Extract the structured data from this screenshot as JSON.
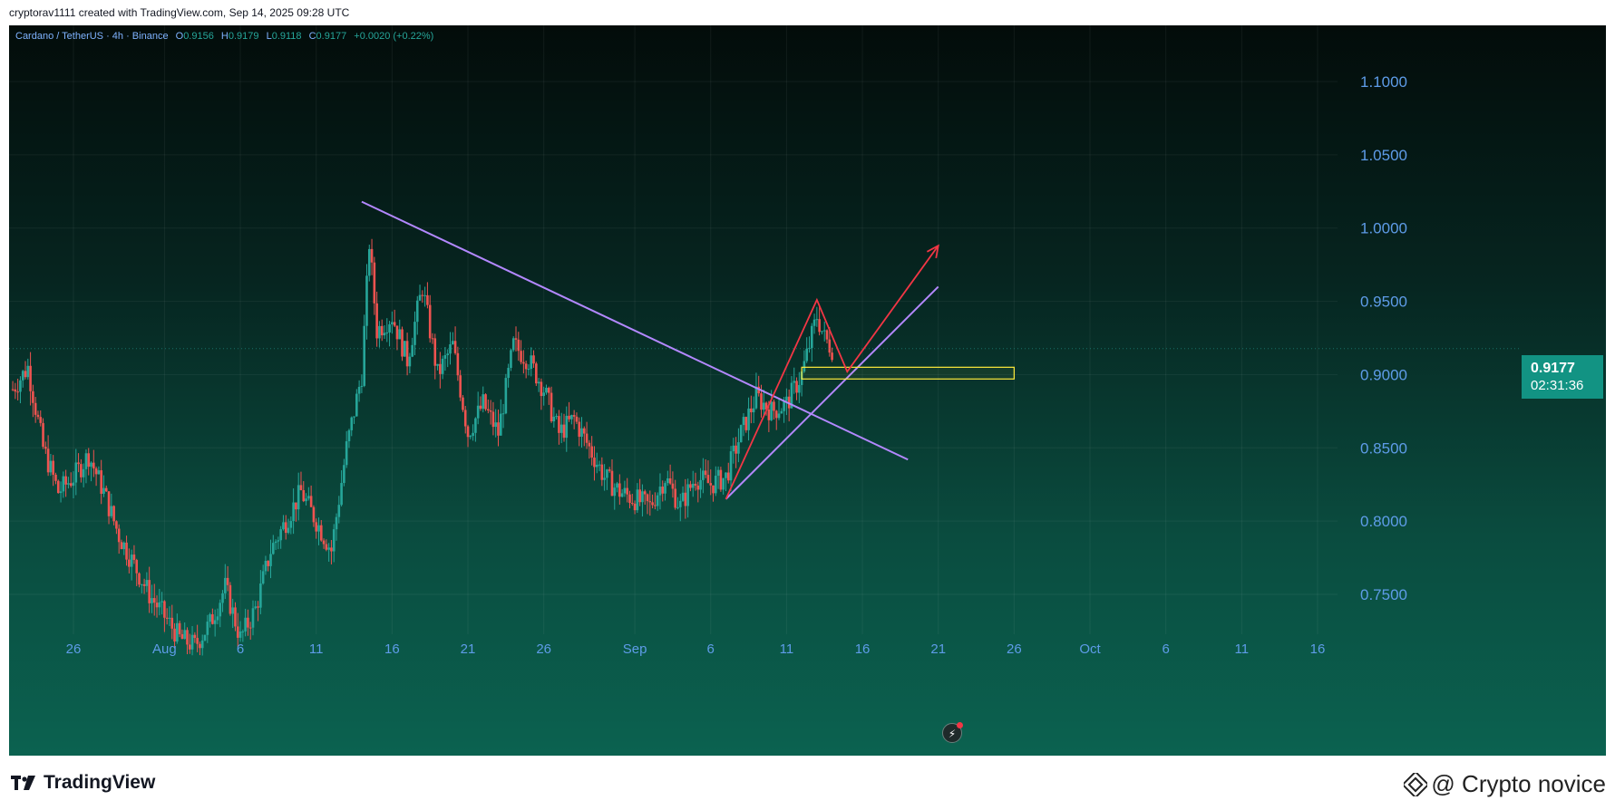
{
  "header": {
    "credit": "cryptorav1111 created with TradingView.com, Sep 14, 2025 09:28 UTC"
  },
  "legend": {
    "symbol": "Cardano / TetherUS · 4h · Binance",
    "o_label": "O",
    "o_value": "0.9156",
    "h_label": "H",
    "h_value": "0.9179",
    "l_label": "L",
    "l_value": "0.9118",
    "c_label": "C",
    "c_value": "0.9177",
    "change": "+0.0020 (+0.22%)"
  },
  "price_tag": {
    "price": "0.9177",
    "countdown": "02:31:36"
  },
  "footer": {
    "brand": "TradingView",
    "watermark": "@ Crypto novice"
  },
  "colors": {
    "up": "#26a69a",
    "down": "#ef5350",
    "axis_text": "#5e9ce8",
    "trendline": "#b388ff",
    "pattern": "#f23645",
    "zone": "#ffeb3b"
  },
  "chart_data": {
    "type": "candlestick",
    "symbol": "Cardano / TetherUS",
    "interval": "4h",
    "exchange": "Binance",
    "y_ticks": [
      1.1,
      1.05,
      1.0,
      0.95,
      0.9,
      0.85,
      0.8,
      0.75
    ],
    "y_tick_labels": [
      "1.1000",
      "1.0500",
      "1.0000",
      "0.9500",
      "0.9000",
      "0.8500",
      "0.8000",
      "0.7500"
    ],
    "ylim": [
      0.7,
      1.125
    ],
    "x_ticks": [
      "26",
      "Aug",
      "6",
      "11",
      "16",
      "21",
      "26",
      "Sep",
      "6",
      "11",
      "16",
      "21",
      "26",
      "Oct",
      "6",
      "11",
      "16"
    ],
    "x_tick_dates": [
      "2025-07-26",
      "2025-08-01",
      "2025-08-06",
      "2025-08-11",
      "2025-08-16",
      "2025-08-21",
      "2025-08-26",
      "2025-09-01",
      "2025-09-06",
      "2025-09-11",
      "2025-09-16",
      "2025-09-21",
      "2025-09-26",
      "2025-10-01",
      "2025-10-06",
      "2025-10-11",
      "2025-10-16"
    ],
    "grid": true,
    "last_price": 0.9177,
    "price_path": [
      [
        "2025-07-22",
        0.89
      ],
      [
        "2025-07-23",
        0.905
      ],
      [
        "2025-07-24",
        0.85
      ],
      [
        "2025-07-25",
        0.82
      ],
      [
        "2025-07-26",
        0.83
      ],
      [
        "2025-07-27",
        0.845
      ],
      [
        "2025-07-28",
        0.82
      ],
      [
        "2025-07-29",
        0.79
      ],
      [
        "2025-07-30",
        0.77
      ],
      [
        "2025-07-31",
        0.75
      ],
      [
        "2025-08-02",
        0.72
      ],
      [
        "2025-08-03",
        0.715
      ],
      [
        "2025-08-04",
        0.73
      ],
      [
        "2025-08-05",
        0.755
      ],
      [
        "2025-08-06",
        0.72
      ],
      [
        "2025-08-07",
        0.74
      ],
      [
        "2025-08-08",
        0.78
      ],
      [
        "2025-08-09",
        0.8
      ],
      [
        "2025-08-10",
        0.82
      ],
      [
        "2025-08-11",
        0.8
      ],
      [
        "2025-08-12",
        0.78
      ],
      [
        "2025-08-13",
        0.85
      ],
      [
        "2025-08-14",
        0.9
      ],
      [
        "2025-08-14T12:00",
        0.99
      ],
      [
        "2025-08-15",
        0.93
      ],
      [
        "2025-08-16",
        0.94
      ],
      [
        "2025-08-17",
        0.91
      ],
      [
        "2025-08-18",
        0.96
      ],
      [
        "2025-08-19",
        0.9
      ],
      [
        "2025-08-20",
        0.92
      ],
      [
        "2025-08-21",
        0.86
      ],
      [
        "2025-08-22",
        0.88
      ],
      [
        "2025-08-23",
        0.86
      ],
      [
        "2025-08-24",
        0.92
      ],
      [
        "2025-08-25",
        0.91
      ],
      [
        "2025-08-26",
        0.89
      ],
      [
        "2025-08-27",
        0.86
      ],
      [
        "2025-08-28",
        0.87
      ],
      [
        "2025-08-29",
        0.85
      ],
      [
        "2025-08-30",
        0.83
      ],
      [
        "2025-08-31",
        0.82
      ],
      [
        "2025-09-01",
        0.815
      ],
      [
        "2025-09-02",
        0.81
      ],
      [
        "2025-09-03",
        0.83
      ],
      [
        "2025-09-04",
        0.81
      ],
      [
        "2025-09-05",
        0.83
      ],
      [
        "2025-09-06",
        0.825
      ],
      [
        "2025-09-07",
        0.83
      ],
      [
        "2025-09-08",
        0.86
      ],
      [
        "2025-09-09",
        0.885
      ],
      [
        "2025-09-10",
        0.875
      ],
      [
        "2025-09-11",
        0.88
      ],
      [
        "2025-09-12",
        0.9
      ],
      [
        "2025-09-13",
        0.94
      ],
      [
        "2025-09-13T12:00",
        0.925
      ],
      [
        "2025-09-14",
        0.9177
      ]
    ],
    "drawings": {
      "descending_trendline": {
        "from": [
          "2025-08-14",
          1.018
        ],
        "to": [
          "2025-09-19",
          0.842
        ]
      },
      "ascending_trendline": {
        "from": [
          "2025-09-07",
          0.815
        ],
        "to": [
          "2025-09-21",
          0.96
        ]
      },
      "support_zone": {
        "x0": "2025-09-12",
        "x1": "2025-09-26",
        "y0": 0.897,
        "y1": 0.905
      },
      "projection_path": [
        [
          "2025-09-07",
          0.815
        ],
        [
          "2025-09-13",
          0.951
        ],
        [
          "2025-09-15",
          0.902
        ],
        [
          "2025-09-21",
          0.988
        ]
      ]
    }
  }
}
